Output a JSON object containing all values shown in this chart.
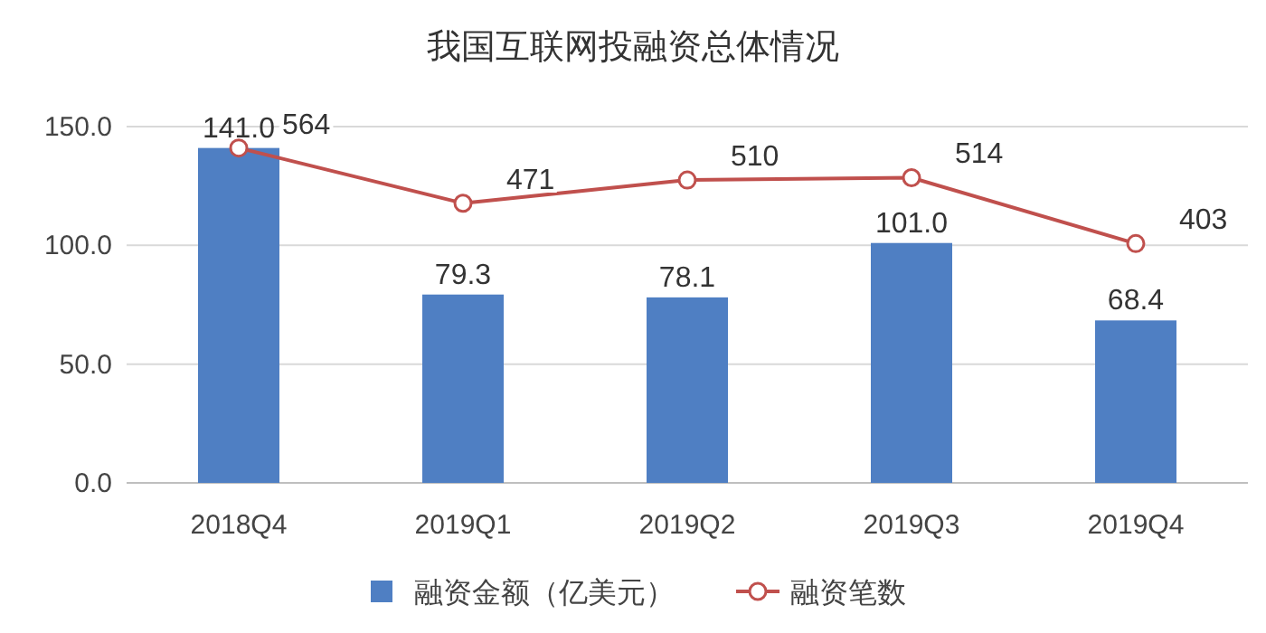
{
  "chart_data": {
    "type": "bar",
    "title": "我国互联网投融资总体情况",
    "categories": [
      "2018Q4",
      "2019Q1",
      "2019Q2",
      "2019Q3",
      "2019Q4"
    ],
    "series": [
      {
        "name": "融资金额（亿美元）",
        "color": "#4f7fc3",
        "values": [
          141.0,
          79.3,
          78.1,
          101.0,
          68.4
        ],
        "value_labels": [
          "141.0",
          "79.3",
          "78.1",
          "101.0",
          "68.4"
        ]
      },
      {
        "name": "融资笔数",
        "type": "line",
        "axis": "y2",
        "color": "#c0504d",
        "marker": "circle",
        "values": [
          564,
          471,
          510,
          514,
          403
        ]
      }
    ],
    "ylim": [
      0,
      150
    ],
    "yticks": [
      {
        "value": 0,
        "label": "0.0"
      },
      {
        "value": 50,
        "label": "50.0"
      },
      {
        "value": 100,
        "label": "100.0"
      },
      {
        "value": 150,
        "label": "150.0"
      }
    ],
    "y2lim": [
      0,
      600
    ],
    "grid": "y",
    "legend": "bottom",
    "data_labels": true
  }
}
